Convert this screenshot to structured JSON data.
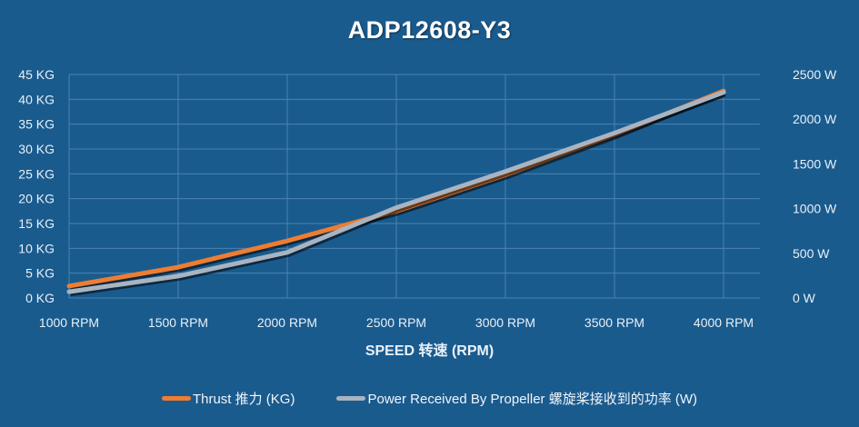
{
  "title": "ADP12608-Y3",
  "colors": {
    "background": "#1a5b8e",
    "grid": "#4a82b3",
    "thrust": "#ee7d31",
    "power": "#a9b4c0"
  },
  "legend": {
    "thrust": "Thrust 推力 (KG)",
    "power": "Power Received By Propeller 螺旋桨接收到的功率 (W)"
  },
  "chart_data": {
    "type": "line",
    "title": "ADP12608-Y3",
    "xlabel": "SPEED 转速 (RPM)",
    "ylabel": "",
    "y2label": "",
    "categories": [
      "1000 RPM",
      "1500 RPM",
      "2000 RPM",
      "2500 RPM",
      "3000 RPM",
      "3500 RPM",
      "4000 RPM"
    ],
    "x": [
      1000,
      1500,
      2000,
      2500,
      3000,
      3500,
      4000
    ],
    "series": [
      {
        "name": "Thrust 推力 (KG)",
        "axis": "left",
        "values": [
          2.4,
          6.2,
          11.5,
          17.5,
          24.8,
          32.9,
          41.7
        ]
      },
      {
        "name": "Power Received By Propeller 螺旋桨接收到的功率 (W)",
        "axis": "right",
        "values": [
          70,
          245,
          510,
          1010,
          1415,
          1845,
          2300
        ]
      }
    ],
    "ylim": [
      0,
      45
    ],
    "y2lim": [
      0,
      2500
    ],
    "yticks": [
      "0 KG",
      "5 KG",
      "10 KG",
      "15 KG",
      "20 KG",
      "25 KG",
      "30 KG",
      "35 KG",
      "40 KG",
      "45 KG"
    ],
    "y2ticks": [
      "0 W",
      "500 W",
      "1000 W",
      "1500 W",
      "2000 W",
      "2500 W"
    ],
    "grid": true,
    "legend_position": "bottom"
  }
}
